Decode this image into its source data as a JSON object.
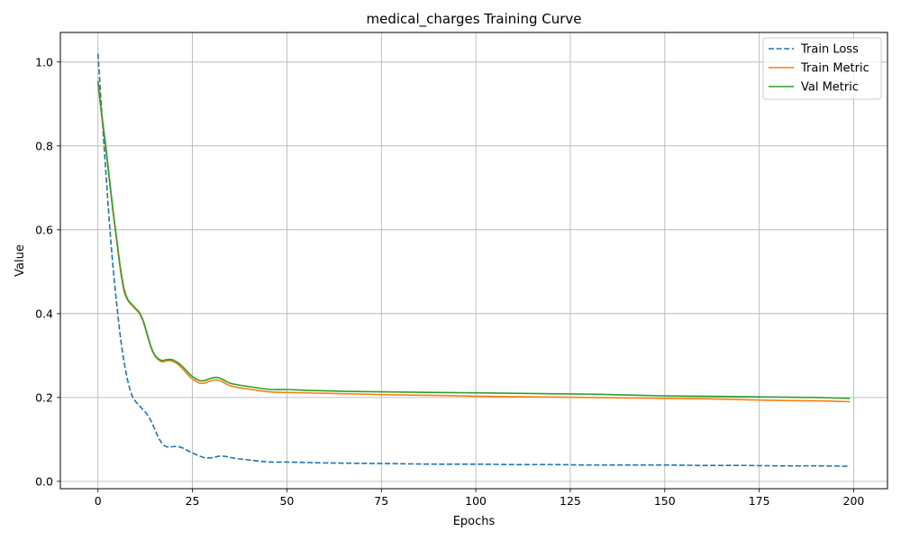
{
  "chart_data": {
    "type": "line",
    "title": "medical_charges Training Curve",
    "xlabel": "Epochs",
    "ylabel": "Value",
    "xlim": [
      -9.95,
      208.95
    ],
    "ylim": [
      -0.0175,
      1.0705
    ],
    "xticks": [
      0,
      25,
      50,
      75,
      100,
      125,
      150,
      175,
      200
    ],
    "yticks": [
      0.0,
      0.2,
      0.4,
      0.6,
      0.8,
      1.0
    ],
    "ytick_labels": [
      "0.0",
      "0.2",
      "0.4",
      "0.6",
      "0.8",
      "1.0"
    ],
    "grid": true,
    "legend_position": "top-right",
    "series": [
      {
        "name": "Train Loss",
        "color": "#1f77b4",
        "style": "dashed",
        "x": [
          0,
          1,
          2,
          3,
          4,
          5,
          6,
          7,
          8,
          9,
          10,
          11,
          12,
          13,
          14,
          15,
          16,
          17,
          18,
          19,
          20,
          21,
          22,
          23,
          24,
          25,
          26,
          27,
          28,
          29,
          30,
          31,
          32,
          33,
          34,
          35,
          37,
          40,
          43,
          46,
          50,
          55,
          60,
          70,
          80,
          90,
          100,
          110,
          120,
          130,
          140,
          150,
          160,
          170,
          180,
          190,
          199
        ],
        "y": [
          1.02,
          0.88,
          0.75,
          0.62,
          0.51,
          0.42,
          0.34,
          0.28,
          0.235,
          0.205,
          0.19,
          0.18,
          0.17,
          0.16,
          0.145,
          0.125,
          0.105,
          0.09,
          0.083,
          0.082,
          0.083,
          0.083,
          0.081,
          0.077,
          0.072,
          0.068,
          0.064,
          0.06,
          0.057,
          0.056,
          0.056,
          0.058,
          0.06,
          0.06,
          0.059,
          0.057,
          0.054,
          0.051,
          0.048,
          0.046,
          0.046,
          0.045,
          0.044,
          0.043,
          0.042,
          0.041,
          0.041,
          0.04,
          0.04,
          0.039,
          0.039,
          0.039,
          0.038,
          0.038,
          0.037,
          0.037,
          0.036
        ]
      },
      {
        "name": "Train Metric",
        "color": "#ff7f0e",
        "style": "solid",
        "x": [
          0,
          1,
          2,
          3,
          4,
          5,
          6,
          7,
          8,
          9,
          10,
          11,
          12,
          13,
          14,
          15,
          16,
          17,
          18,
          19,
          20,
          21,
          22,
          23,
          24,
          25,
          26,
          27,
          28,
          29,
          30,
          31,
          32,
          33,
          34,
          35,
          37,
          40,
          43,
          46,
          50,
          55,
          60,
          70,
          80,
          90,
          100,
          110,
          120,
          130,
          140,
          150,
          160,
          170,
          180,
          190,
          199
        ],
        "y": [
          0.95,
          0.87,
          0.8,
          0.72,
          0.64,
          0.57,
          0.5,
          0.45,
          0.43,
          0.42,
          0.41,
          0.4,
          0.38,
          0.35,
          0.32,
          0.3,
          0.29,
          0.285,
          0.287,
          0.288,
          0.285,
          0.28,
          0.272,
          0.262,
          0.252,
          0.244,
          0.238,
          0.234,
          0.234,
          0.237,
          0.24,
          0.242,
          0.241,
          0.237,
          0.232,
          0.228,
          0.224,
          0.22,
          0.216,
          0.213,
          0.212,
          0.211,
          0.21,
          0.208,
          0.206,
          0.205,
          0.203,
          0.202,
          0.201,
          0.2,
          0.199,
          0.198,
          0.197,
          0.195,
          0.193,
          0.192,
          0.19
        ]
      },
      {
        "name": "Val Metric",
        "color": "#2ca02c",
        "style": "solid",
        "x": [
          0,
          1,
          2,
          3,
          4,
          5,
          6,
          7,
          8,
          9,
          10,
          11,
          12,
          13,
          14,
          15,
          16,
          17,
          18,
          19,
          20,
          21,
          22,
          23,
          24,
          25,
          26,
          27,
          28,
          29,
          30,
          31,
          32,
          33,
          34,
          35,
          37,
          40,
          43,
          46,
          50,
          55,
          60,
          70,
          80,
          90,
          100,
          110,
          120,
          130,
          140,
          150,
          160,
          170,
          180,
          190,
          199
        ],
        "y": [
          0.955,
          0.875,
          0.805,
          0.725,
          0.645,
          0.575,
          0.505,
          0.455,
          0.432,
          0.422,
          0.412,
          0.402,
          0.382,
          0.352,
          0.322,
          0.302,
          0.292,
          0.288,
          0.29,
          0.291,
          0.289,
          0.284,
          0.277,
          0.268,
          0.258,
          0.25,
          0.244,
          0.24,
          0.24,
          0.243,
          0.246,
          0.248,
          0.247,
          0.243,
          0.238,
          0.234,
          0.23,
          0.226,
          0.222,
          0.219,
          0.219,
          0.217,
          0.216,
          0.214,
          0.213,
          0.212,
          0.211,
          0.21,
          0.209,
          0.208,
          0.206,
          0.204,
          0.203,
          0.202,
          0.201,
          0.2,
          0.198
        ]
      }
    ]
  }
}
